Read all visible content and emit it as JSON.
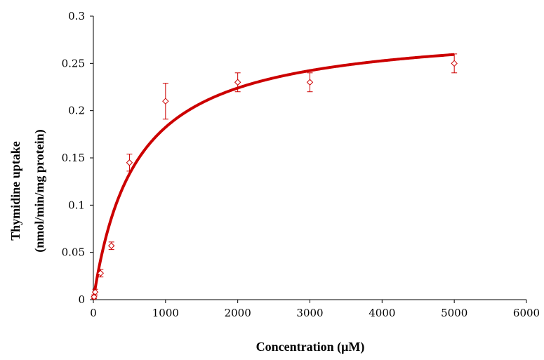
{
  "chart_data": {
    "type": "scatter",
    "title": "",
    "xlabel": "Concentration (μM)",
    "ylabel": [
      "Thymidine uptake",
      "(nmol/min/mg protein)"
    ],
    "xlim": [
      0,
      6000
    ],
    "ylim": [
      0,
      0.3
    ],
    "xticks": [
      0,
      1000,
      2000,
      3000,
      4000,
      5000,
      6000
    ],
    "xtick_labels": [
      "0",
      "1000",
      "2000",
      "3000",
      "4000",
      "5000",
      "6000"
    ],
    "yticks": [
      0,
      0.05,
      0.1,
      0.15,
      0.2,
      0.25,
      0.3
    ],
    "ytick_labels": [
      "0",
      "0.05",
      "0.1",
      "0.15",
      "0.2",
      "0.25",
      "0.3"
    ],
    "grid": false,
    "legend": "none",
    "series": [
      {
        "type": "scatter",
        "marker": "diamond-open",
        "color": "#cc0000",
        "x": [
          10,
          25,
          100,
          250,
          500,
          1000,
          2000,
          3000,
          5000
        ],
        "y": [
          0.003,
          0.008,
          0.028,
          0.057,
          0.145,
          0.21,
          0.23,
          0.23,
          0.25
        ],
        "error": [
          0.002,
          0.003,
          0.004,
          0.004,
          0.009,
          0.019,
          0.01,
          0.01,
          0.01
        ]
      },
      {
        "type": "line",
        "fit": "michaelis-menten",
        "color": "#cc0000",
        "vmax": 0.29,
        "km": 590,
        "x_range": [
          0,
          5000
        ]
      }
    ]
  }
}
